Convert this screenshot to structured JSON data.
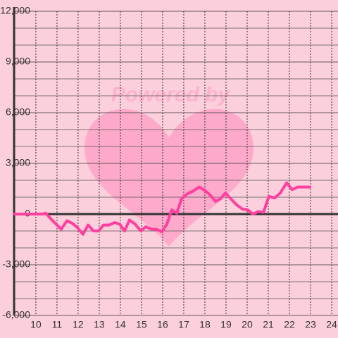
{
  "chart_data": {
    "type": "line",
    "watermark": "Powered by",
    "x": [
      9.0,
      10.3,
      10.47,
      10.8,
      11.2,
      11.47,
      11.73,
      11.97,
      12.23,
      12.47,
      12.73,
      12.97,
      13.2,
      13.47,
      13.73,
      13.97,
      14.2,
      14.43,
      14.7,
      14.97,
      15.2,
      15.47,
      15.7,
      15.97,
      16.2,
      16.43,
      16.67,
      16.9,
      17.17,
      17.43,
      17.73,
      18.0,
      18.27,
      18.5,
      18.73,
      18.97,
      19.23,
      19.5,
      19.77,
      20.03,
      20.27,
      20.53,
      20.77,
      21.03,
      21.3,
      21.57,
      21.87,
      22.13,
      22.4,
      22.7,
      22.97
    ],
    "series": [
      {
        "color": "#ff3fa0",
        "values": [
          0,
          0,
          50,
          -400,
          -900,
          -400,
          -550,
          -800,
          -1200,
          -650,
          -1000,
          -1000,
          -650,
          -650,
          -500,
          -600,
          -1000,
          -350,
          -600,
          -1000,
          -750,
          -900,
          -900,
          -1050,
          -600,
          250,
          50,
          900,
          1200,
          1350,
          1600,
          1400,
          1100,
          750,
          900,
          1250,
          900,
          550,
          300,
          250,
          0,
          150,
          100,
          1050,
          950,
          1250,
          1850,
          1450,
          1600,
          1600,
          1600
        ]
      }
    ],
    "xlim": [
      8.97,
      24.3
    ],
    "xticks": [
      10,
      11,
      12,
      13,
      14,
      15,
      16,
      17,
      18,
      19,
      20,
      21,
      22,
      23,
      24
    ],
    "ylim": [
      -6000,
      12000
    ],
    "yticks": [
      {
        "value": 12000,
        "label": "12,000"
      },
      {
        "value": 9000,
        "label": "9,000"
      },
      {
        "value": 6000,
        "label": "6,000"
      },
      {
        "value": 3000,
        "label": "3,000"
      },
      0,
      {
        "value": -3000,
        "label": "-3,000"
      },
      {
        "value": -6000,
        "label": "-6,000"
      }
    ],
    "minor_yticks": [
      11000,
      10000,
      8000,
      7000,
      5000,
      4000,
      2000,
      1000,
      -1000,
      -2000,
      -4000,
      -5000
    ],
    "grid": true
  }
}
